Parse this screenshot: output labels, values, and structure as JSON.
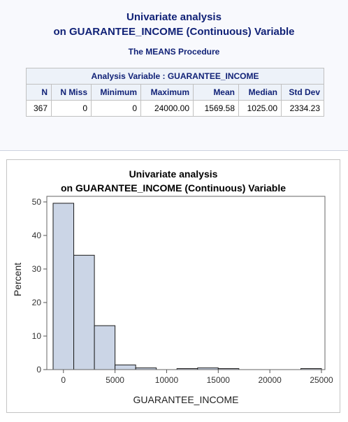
{
  "report": {
    "title_line1": "Univariate analysis",
    "title_line2": "on GUARANTEE_INCOME (Continuous) Variable",
    "procedure": "The MEANS Procedure"
  },
  "stats_table": {
    "caption": "Analysis Variable : GUARANTEE_INCOME",
    "headers": [
      "N",
      "N Miss",
      "Minimum",
      "Maximum",
      "Mean",
      "Median",
      "Std Dev"
    ],
    "row": [
      "367",
      "0",
      "0",
      "24000.00",
      "1569.58",
      "1025.00",
      "2334.23"
    ]
  },
  "chart_data": {
    "type": "bar",
    "title": "Univariate analysis",
    "subtitle": "on GUARANTEE_INCOME (Continuous) Variable",
    "xlabel": "GUARANTEE_INCOME",
    "ylabel": "Percent",
    "bin_width": 2000,
    "bins": [
      {
        "start": -1000,
        "end": 1000,
        "value": 49.6
      },
      {
        "start": 1000,
        "end": 3000,
        "value": 34.1
      },
      {
        "start": 3000,
        "end": 5000,
        "value": 13.1
      },
      {
        "start": 5000,
        "end": 7000,
        "value": 1.4
      },
      {
        "start": 7000,
        "end": 9000,
        "value": 0.5
      },
      {
        "start": 9000,
        "end": 11000,
        "value": 0
      },
      {
        "start": 11000,
        "end": 13000,
        "value": 0.3
      },
      {
        "start": 13000,
        "end": 15000,
        "value": 0.5
      },
      {
        "start": 15000,
        "end": 17000,
        "value": 0.3
      },
      {
        "start": 17000,
        "end": 19000,
        "value": 0
      },
      {
        "start": 19000,
        "end": 21000,
        "value": 0
      },
      {
        "start": 21000,
        "end": 23000,
        "value": 0
      },
      {
        "start": 23000,
        "end": 25000,
        "value": 0.3
      }
    ],
    "xlim": [
      -1000,
      25000
    ],
    "ylim": [
      0,
      50
    ],
    "xticks": [
      0,
      5000,
      10000,
      15000,
      20000,
      25000
    ],
    "yticks": [
      0,
      10,
      20,
      30,
      40,
      50
    ],
    "grid": false,
    "colors": {
      "bar_fill": "#cbd5e6",
      "bar_stroke": "#1a1a1a",
      "axis": "#555555",
      "title": "#000000"
    }
  }
}
